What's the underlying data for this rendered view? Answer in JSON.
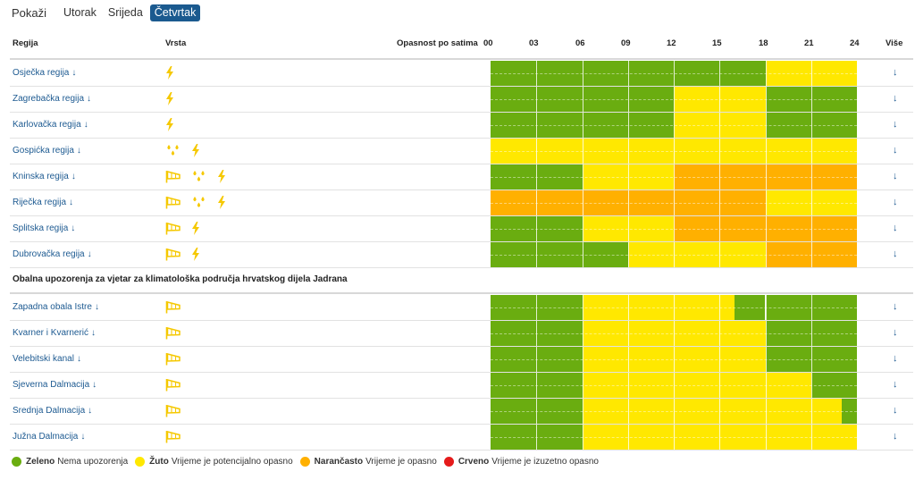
{
  "filter": {
    "label": "Pokaži",
    "days": [
      {
        "label": "Utorak",
        "active": false
      },
      {
        "label": "Srijeda",
        "active": false
      },
      {
        "label": "Četvrtak",
        "active": true
      }
    ]
  },
  "header": {
    "region": "Regija",
    "type": "Vrsta",
    "danger": "Opasnost po satima",
    "hours": [
      "00",
      "03",
      "06",
      "09",
      "12",
      "15",
      "18",
      "21",
      "24"
    ],
    "more": "Više"
  },
  "colors": {
    "green": "#6aad10",
    "yellow": "#ffe800",
    "orange": "#ffb000",
    "red": "#e51b1b",
    "link": "#1d5a91",
    "active_tab": "#1b5a8f",
    "icon": "#f5c800"
  },
  "regions": [
    {
      "name": "Osječka regija",
      "icons": [
        "thunder-icon"
      ],
      "slots": [
        "G",
        "G",
        "G",
        "G",
        "G",
        "G",
        "Y",
        "Y"
      ]
    },
    {
      "name": "Zagrebačka regija",
      "icons": [
        "thunder-icon"
      ],
      "slots": [
        "G",
        "G",
        "G",
        "G",
        "Y",
        "Y",
        "G",
        "G"
      ]
    },
    {
      "name": "Karlovačka regija",
      "icons": [
        "thunder-icon"
      ],
      "slots": [
        "G",
        "G",
        "G",
        "G",
        "Y",
        "Y",
        "G",
        "G"
      ]
    },
    {
      "name": "Gospićka regija",
      "icons": [
        "rain-icon",
        "thunder-icon"
      ],
      "slots": [
        "Y",
        "Y",
        "Y",
        "Y",
        "Y",
        "Y",
        "Y",
        "Y"
      ]
    },
    {
      "name": "Kninska regija",
      "icons": [
        "wind-icon",
        "rain-icon",
        "thunder-icon"
      ],
      "slots": [
        "G",
        "G",
        "Y",
        "Y",
        "O",
        "O",
        "O",
        "O"
      ]
    },
    {
      "name": "Riječka regija",
      "icons": [
        "wind-icon",
        "rain-icon",
        "thunder-icon"
      ],
      "slots": [
        "O",
        "O",
        "O",
        "O",
        "O",
        "O",
        "Y",
        "Y"
      ]
    },
    {
      "name": "Splitska regija",
      "icons": [
        "wind-icon",
        "thunder-icon"
      ],
      "slots": [
        "G",
        "G",
        "Y",
        "Y",
        "O",
        "O",
        "O",
        "O"
      ]
    },
    {
      "name": "Dubrovačka regija",
      "icons": [
        "wind-icon",
        "thunder-icon"
      ],
      "slots": [
        "G",
        "G",
        "G",
        "Y",
        "Y",
        "Y",
        "O",
        "O"
      ]
    }
  ],
  "coast_section": {
    "title": "Obalna upozorenja za vjetar za klimatološka područja hrvatskog dijela Jadrana",
    "areas": [
      {
        "name": "Zapadna obala Istre",
        "icons": [
          "wind-icon"
        ],
        "bands": [
          {
            "c": "G",
            "h": 6
          },
          {
            "c": "Y",
            "h": 16
          },
          {
            "c": "G",
            "h": 18
          },
          {
            "c": "Y",
            "h": 18
          },
          {
            "c": "G",
            "h": 24
          }
        ]
      },
      {
        "name": "Kvarner i Kvarnerić",
        "icons": [
          "wind-icon"
        ],
        "bands": [
          {
            "c": "G",
            "h": 6
          },
          {
            "c": "Y",
            "h": 18
          },
          {
            "c": "G",
            "h": 24
          }
        ]
      },
      {
        "name": "Velebitski kanal",
        "icons": [
          "wind-icon"
        ],
        "bands": [
          {
            "c": "G",
            "h": 6
          },
          {
            "c": "Y",
            "h": 18
          },
          {
            "c": "G",
            "h": 24
          }
        ]
      },
      {
        "name": "Sjeverna Dalmacija",
        "icons": [
          "wind-icon"
        ],
        "bands": [
          {
            "c": "G",
            "h": 6
          },
          {
            "c": "Y",
            "h": 21
          },
          {
            "c": "G",
            "h": 24
          }
        ]
      },
      {
        "name": "Srednja Dalmacija",
        "icons": [
          "wind-icon"
        ],
        "bands": [
          {
            "c": "G",
            "h": 6
          },
          {
            "c": "Y",
            "h": 23
          },
          {
            "c": "G",
            "h": 24
          }
        ]
      },
      {
        "name": "Južna Dalmacija",
        "icons": [
          "wind-icon"
        ],
        "bands": [
          {
            "c": "G",
            "h": 6
          },
          {
            "c": "Y",
            "h": 24
          }
        ]
      }
    ]
  },
  "legend": [
    {
      "name": "Zeleno",
      "desc": "Nema upozorenja",
      "color": "#6aad10"
    },
    {
      "name": "Žuto",
      "desc": "Vrijeme je potencijalno opasno",
      "color": "#ffe800"
    },
    {
      "name": "Narančasto",
      "desc": "Vrijeme je opasno",
      "color": "#ffb000"
    },
    {
      "name": "Crveno",
      "desc": "Vrijeme je izuzetno opasno",
      "color": "#e51b1b"
    }
  ]
}
